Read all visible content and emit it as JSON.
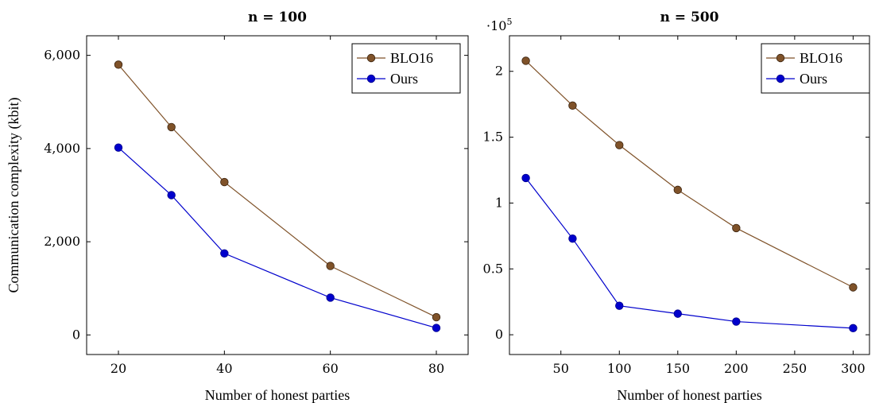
{
  "chart_data": [
    {
      "type": "line",
      "title": "n = 100",
      "xlabel": "Number of honest parties",
      "ylabel": "Communication complexity (kbit)",
      "xlim": [
        14,
        86
      ],
      "ylim": [
        -420,
        6420
      ],
      "xticks": [
        20,
        40,
        60,
        80
      ],
      "xtick_labels": [
        "20",
        "40",
        "60",
        "80"
      ],
      "yticks": [
        0,
        2000,
        4000,
        6000
      ],
      "ytick_labels": [
        "0",
        "2,000",
        "4,000",
        "6,000"
      ],
      "y_multiplier": "",
      "legend_position": "top-right",
      "series": [
        {
          "name": "BLO16",
          "color": "#7f5229",
          "x": [
            20,
            30,
            40,
            60,
            80
          ],
          "y": [
            5800,
            4460,
            3280,
            1480,
            380
          ]
        },
        {
          "name": "Ours",
          "color": "#0000cc",
          "x": [
            20,
            30,
            40,
            60,
            80
          ],
          "y": [
            4020,
            3000,
            1750,
            800,
            150
          ]
        }
      ]
    },
    {
      "type": "line",
      "title": "n = 500",
      "xlabel": "Number of honest parties",
      "ylabel": "",
      "xlim": [
        6,
        314
      ],
      "ylim": [
        -0.15,
        2.27
      ],
      "xticks": [
        50,
        100,
        150,
        200,
        250,
        300
      ],
      "xtick_labels": [
        "50",
        "100",
        "150",
        "200",
        "250",
        "300"
      ],
      "yticks": [
        0,
        0.5,
        1,
        1.5,
        2
      ],
      "ytick_labels": [
        "0",
        "0.5",
        "1",
        "1.5",
        "2"
      ],
      "y_multiplier": "·10",
      "y_multiplier_exp": "5",
      "legend_position": "top-right",
      "series": [
        {
          "name": "BLO16",
          "color": "#7f5229",
          "x": [
            20,
            60,
            100,
            150,
            200,
            300
          ],
          "y": [
            2.08,
            1.74,
            1.44,
            1.1,
            0.81,
            0.36
          ]
        },
        {
          "name": "Ours",
          "color": "#0000cc",
          "x": [
            20,
            60,
            100,
            150,
            200,
            300
          ],
          "y": [
            1.19,
            0.73,
            0.22,
            0.16,
            0.1,
            0.05
          ]
        }
      ]
    }
  ]
}
